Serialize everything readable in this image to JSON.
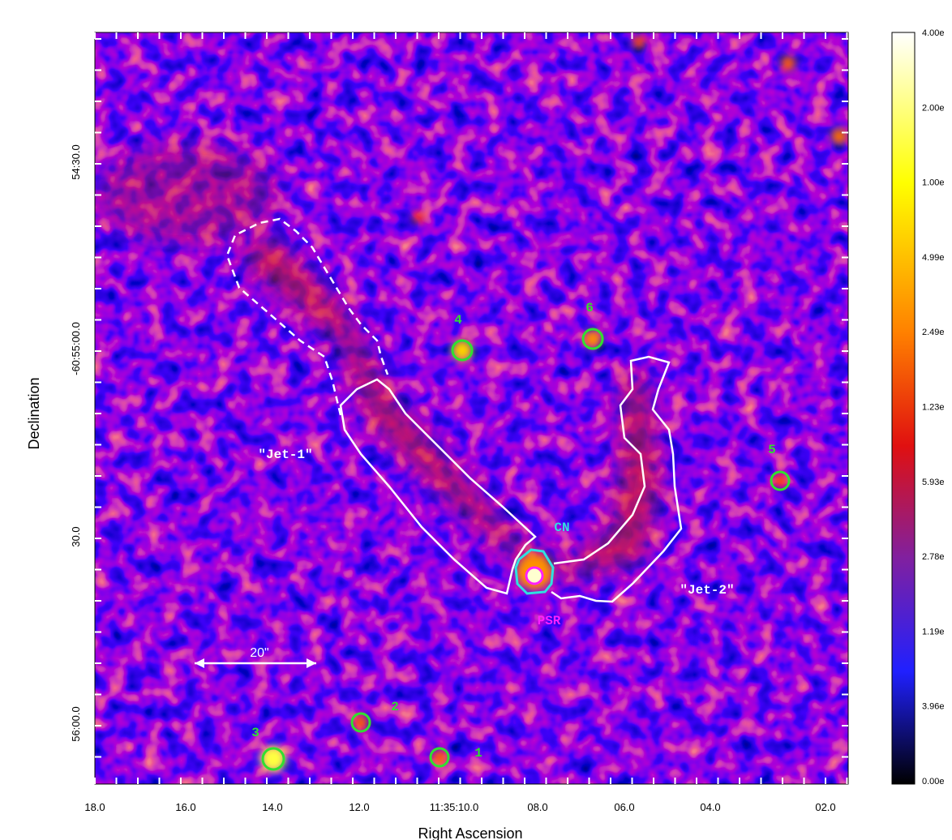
{
  "axes": {
    "x_label": "Right Ascension",
    "y_label": "Declination",
    "x_ticks": [
      "18.0",
      "16.0",
      "14.0",
      "12.0",
      "11:35:10.0",
      "08.0",
      "06.0",
      "04.0",
      "02.0"
    ],
    "y_ticks": [
      "54:30.0",
      "-60:55:00.0",
      "30.0",
      "56:00.0"
    ]
  },
  "colorbar": {
    "labels": [
      "4.00e",
      "2.00e",
      "1.00e",
      "4.99e",
      "2.49e",
      "1.23e",
      "5.93e",
      "2.78e",
      "1.19e",
      "3.96e",
      "0.00e"
    ]
  },
  "annotations": {
    "scale": "20\"",
    "jet1": "\"Jet-1\"",
    "jet2": "\"Jet-2\"",
    "cn": "CN",
    "psr": "PSR",
    "sources": [
      "1",
      "2",
      "3",
      "4",
      "5",
      "6"
    ]
  }
}
